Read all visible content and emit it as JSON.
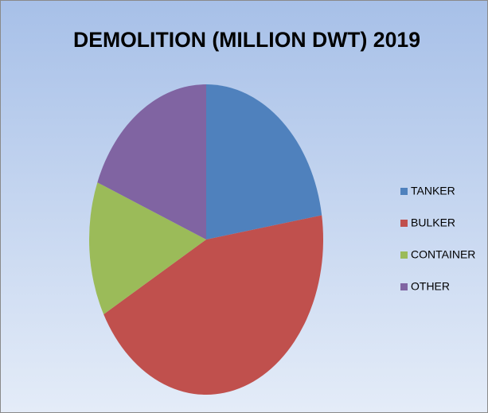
{
  "chart_data": {
    "type": "pie",
    "title": "DEMOLITION (MILLION DWT) 2019",
    "categories": [
      "TANKER",
      "BULKER",
      "CONTAINER",
      "OTHER"
    ],
    "values": [
      22.5,
      44.5,
      14,
      19
    ],
    "colors": [
      "#4f81bd",
      "#c0504d",
      "#9bbb59",
      "#8064a2"
    ],
    "legend": "right"
  }
}
